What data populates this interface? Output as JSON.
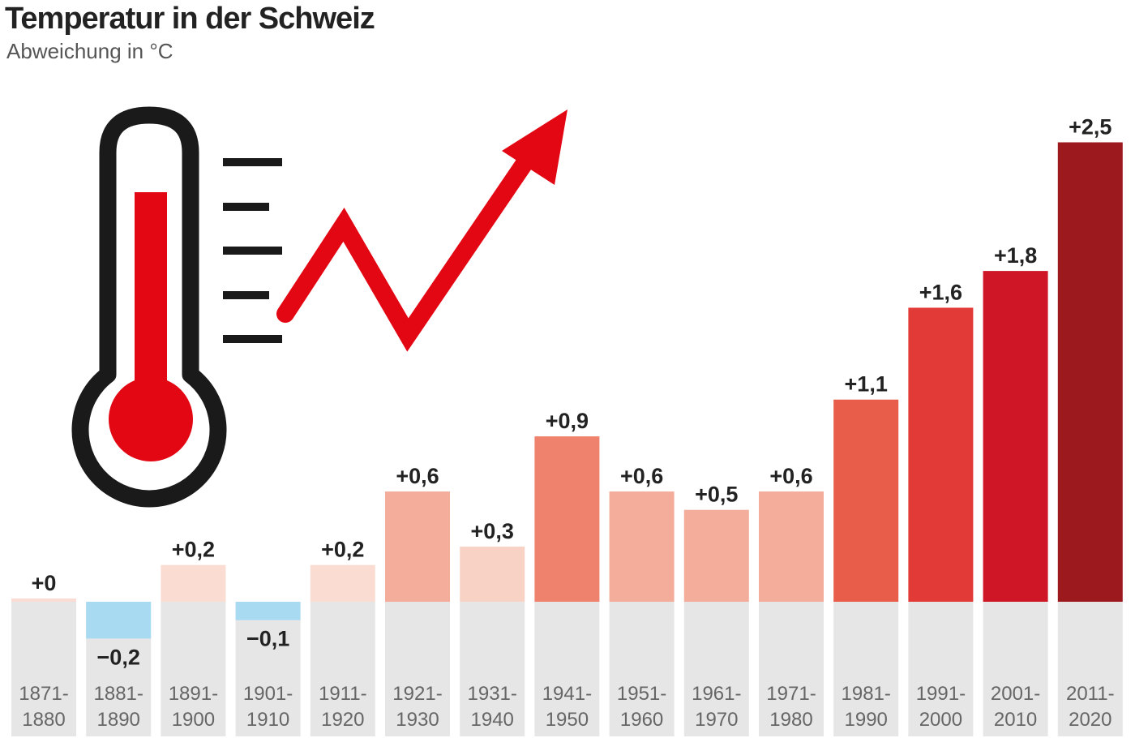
{
  "chart_data": {
    "type": "bar",
    "title": "Temperatur in der Schweiz",
    "subtitle": "Abweichung in °C",
    "xlabel": "",
    "ylabel": "",
    "grid": false,
    "legend": "none",
    "ylim": [
      -0.2,
      2.5
    ],
    "categories": [
      [
        "1871-",
        "1880"
      ],
      [
        "1881-",
        "1890"
      ],
      [
        "1891-",
        "1900"
      ],
      [
        "1901-",
        "1910"
      ],
      [
        "1911-",
        "1920"
      ],
      [
        "1921-",
        "1930"
      ],
      [
        "1931-",
        "1940"
      ],
      [
        "1941-",
        "1950"
      ],
      [
        "1951-",
        "1960"
      ],
      [
        "1961-",
        "1970"
      ],
      [
        "1971-",
        "1980"
      ],
      [
        "1981-",
        "1990"
      ],
      [
        "1991-",
        "2000"
      ],
      [
        "2001-",
        "2010"
      ],
      [
        "2011-",
        "2020"
      ]
    ],
    "values": [
      0,
      -0.2,
      0.2,
      -0.1,
      0.2,
      0.6,
      0.3,
      0.9,
      0.6,
      0.5,
      0.6,
      1.1,
      1.6,
      1.8,
      2.5
    ],
    "value_labels": [
      "+0",
      "−0,2",
      "+0,2",
      "−0,1",
      "+0,2",
      "+0,6",
      "+0,3",
      "+0,9",
      "+0,6",
      "+0,5",
      "+0,6",
      "+1,1",
      "+1,6",
      "+1,8",
      "+2,5"
    ],
    "bar_colors": [
      "#f9dcd3",
      "#a8daf2",
      "#fbdcd2",
      "#a8daf2",
      "#fbdcd2",
      "#f4ad9a",
      "#f9d2c6",
      "#ee826c",
      "#f4ad9a",
      "#f4ad9a",
      "#f4ad9a",
      "#e75d49",
      "#e23a37",
      "#cf1626",
      "#9c191d"
    ],
    "colors": {
      "column_background": "#e6e6e6",
      "text": "#222222",
      "tick_text": "#666666",
      "thermometer_outline": "#1a1a1a",
      "thermometer_fill": "#e30613",
      "arrow": "#e30613"
    },
    "decoration": {
      "icon": "thermometer-icon",
      "arrow": "rising-arrow-icon"
    }
  }
}
